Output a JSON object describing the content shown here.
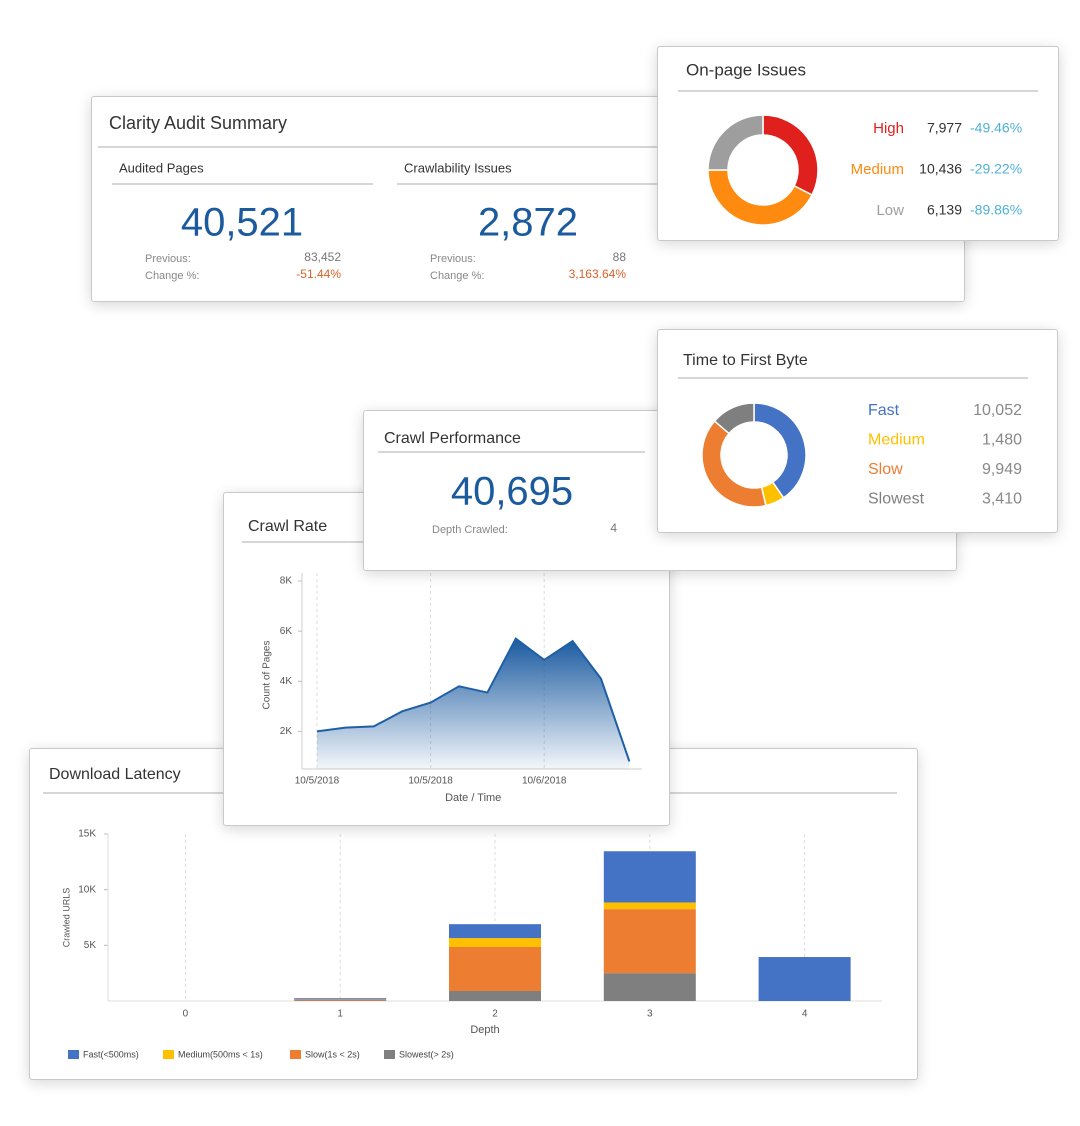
{
  "audit_summary": {
    "title": "Clarity Audit Summary",
    "cards": [
      {
        "label": "Audited Pages",
        "value": "40,521",
        "previous_label": "Previous:",
        "previous": "83,452",
        "change_label": "Change %:",
        "change": "-51.44%"
      },
      {
        "label": "Crawlability Issues",
        "value": "2,872",
        "previous_label": "Previous:",
        "previous": "88",
        "change_label": "Change %:",
        "change": "3,163.64%"
      }
    ]
  },
  "crawl_performance": {
    "title": "Crawl Performance",
    "value": "40,695",
    "depth_label": "Depth Crawled:",
    "depth": "4"
  },
  "chart_data": [
    {
      "type": "donut",
      "title": "On-page Issues",
      "categories": [
        "High",
        "Medium",
        "Low"
      ],
      "values": [
        7977,
        10436,
        6139
      ],
      "value_labels": [
        "7,977",
        "10,436",
        "6,139"
      ],
      "changes": [
        "-49.46%",
        "-29.22%",
        "-89.86%"
      ],
      "colors": [
        "#e0201c",
        "#ff8a10",
        "#9e9e9e"
      ]
    },
    {
      "type": "donut",
      "title": "Time to First Byte",
      "categories": [
        "Fast",
        "Medium",
        "Slow",
        "Slowest"
      ],
      "values": [
        10052,
        1480,
        9949,
        3410
      ],
      "value_labels": [
        "10,052",
        "1,480",
        "9,949",
        "3,410"
      ],
      "colors": [
        "#4472c4",
        "#ffc000",
        "#ed7d31",
        "#7f7f7f"
      ]
    },
    {
      "type": "area",
      "title": "Crawl Rate",
      "x_label": "Date / Time",
      "y_label": "Count of Pages",
      "categories": [
        "10/5/2018",
        null,
        null,
        null,
        "10/5/2018",
        null,
        null,
        null,
        "10/6/2018",
        null,
        null,
        null
      ],
      "values": [
        2000,
        2150,
        2200,
        2800,
        3150,
        3800,
        3550,
        5700,
        4850,
        5600,
        4100,
        800
      ],
      "color": "#1f5fa6",
      "ylim": [
        500,
        8000
      ],
      "yticks": [
        {
          "value": 2000,
          "label": "2K"
        },
        {
          "value": 4000,
          "label": "4K"
        },
        {
          "value": 6000,
          "label": "6K"
        },
        {
          "value": 8000,
          "label": "8K"
        }
      ]
    },
    {
      "type": "stacked_bar",
      "title": "Download Latency",
      "x_label": "Depth",
      "y_label": "Crawled URLS",
      "categories": [
        "0",
        "1",
        "2",
        "3",
        "4"
      ],
      "series": [
        {
          "name": "Fast(<500ms)",
          "color": "#4472c4",
          "values": [
            0,
            100,
            1250,
            4600,
            3950
          ]
        },
        {
          "name": "Medium(500ms < 1s)",
          "color": "#ffc000",
          "values": [
            0,
            20,
            800,
            600,
            0
          ]
        },
        {
          "name": "Slow(1s < 2s)",
          "color": "#ed7d31",
          "values": [
            0,
            80,
            3950,
            5750,
            0
          ]
        },
        {
          "name": "Slowest(> 2s)",
          "color": "#7f7f7f",
          "values": [
            0,
            50,
            900,
            2500,
            0
          ]
        }
      ],
      "ylim": [
        0,
        15000
      ],
      "yticks": [
        {
          "value": 5000,
          "label": "5K"
        },
        {
          "value": 10000,
          "label": "10K"
        },
        {
          "value": 15000,
          "label": "15K"
        }
      ]
    }
  ]
}
